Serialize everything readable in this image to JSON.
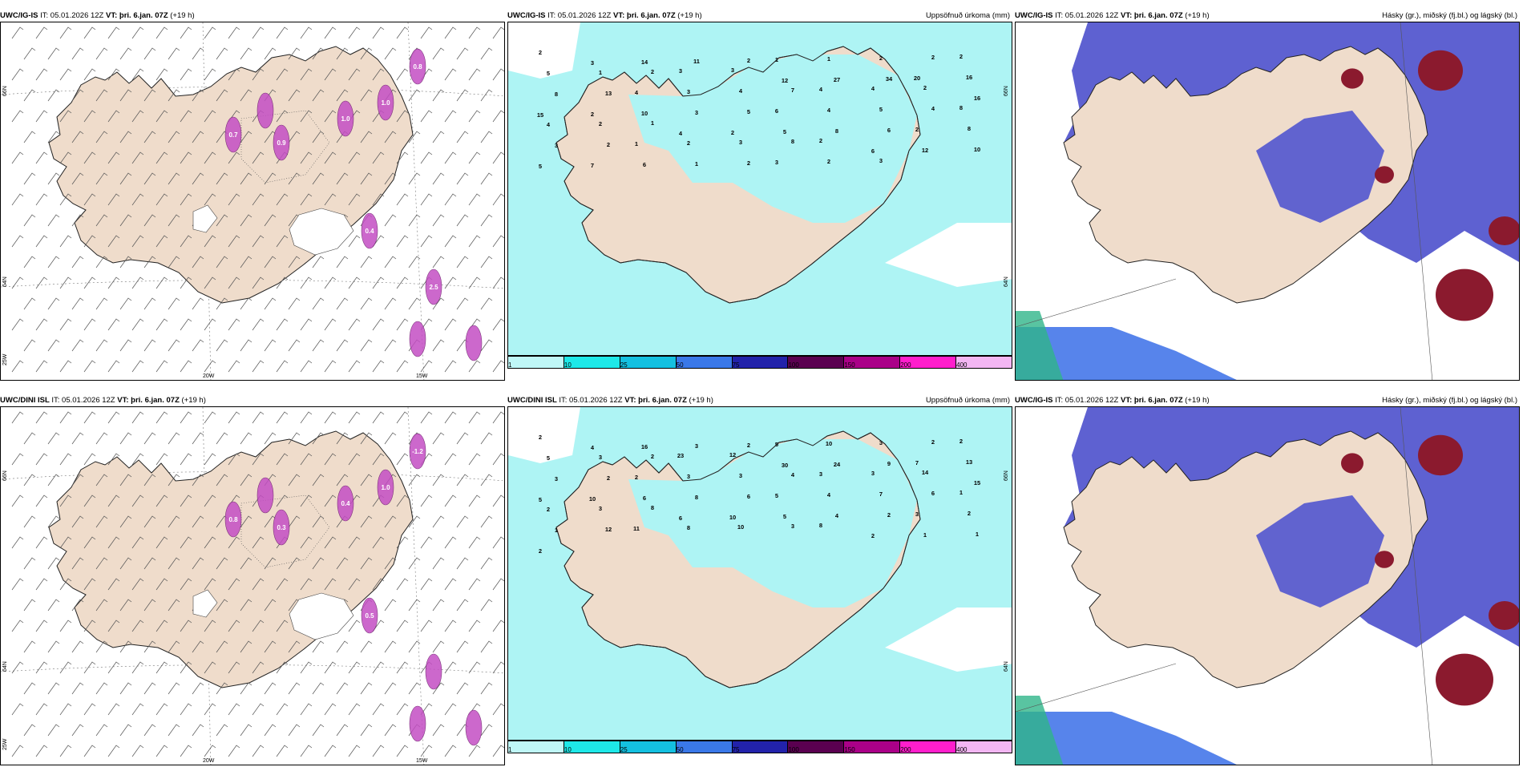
{
  "rows": [
    {
      "panels": [
        {
          "model": "UWC/IG-IS",
          "it": "IT: 05.01.2026 12Z",
          "vt_label": "VT:",
          "vt_value": "þri. 6.jan. 07Z",
          "lead": "(+19 h)",
          "field": "",
          "grid": {
            "lat66": "66N",
            "lat64": "64N",
            "lon20": "20W",
            "lon15": "15W",
            "lon25": "25W"
          },
          "wind_labels": [
            "1.0",
            "0.8",
            "1.0",
            "0.9",
            "0.7",
            "0.4",
            "2.5"
          ]
        },
        {
          "model": "UWC/IG-IS",
          "it": "IT: 05.01.2026 12Z",
          "vt_label": "VT:",
          "vt_value": "þri. 6.jan. 07Z",
          "lead": "(+19 h)",
          "field": "Uppsöfnuð úrkoma (mm)",
          "grid": {
            "lat66": "66N",
            "lat64": "64N"
          },
          "precip": [
            "2",
            "3",
            "14",
            "11",
            "2",
            "1",
            "1",
            "2",
            "2",
            "2",
            "5",
            "1",
            "2",
            "3",
            "3",
            "12",
            "27",
            "34",
            "20",
            "16",
            "8",
            "13",
            "4",
            "3",
            "4",
            "7",
            "4",
            "4",
            "2",
            "16",
            "15",
            "2",
            "10",
            "3",
            "5",
            "6",
            "4",
            "5",
            "4",
            "8",
            "4",
            "2",
            "1",
            "4",
            "2",
            "5",
            "8",
            "6",
            "2",
            "8",
            "3",
            "2",
            "1",
            "2",
            "3",
            "8",
            "2",
            "6",
            "12",
            "10",
            "5",
            "7",
            "6",
            "1",
            "2",
            "3",
            "2",
            "3"
          ]
        },
        {
          "model": "UWC/IG-IS",
          "it": "IT: 05.01.2026 12Z",
          "vt_label": "VT:",
          "vt_value": "þri. 6.jan. 07Z",
          "lead": "(+19 h)",
          "field": "Hásky (gr.), miðský (fj.bl.) og lágský (bl.)"
        }
      ]
    },
    {
      "panels": [
        {
          "model": "UWC/DINI ISL",
          "it": "IT: 05.01.2026 12Z",
          "vt_label": "VT:",
          "vt_value": "þri. 6.jan. 07Z",
          "lead": "(+19 h)",
          "field": "",
          "grid": {
            "lat66": "66N",
            "lat64": "64N",
            "lon20": "20W",
            "lon15": "15W",
            "lon25": "25W"
          },
          "wind_labels": [
            "1.0",
            "-1.2",
            "0.4",
            "0.3",
            "0.8",
            "0.5"
          ]
        },
        {
          "model": "UWC/DINI ISL",
          "it": "IT: 05.01.2026 12Z",
          "vt_label": "VT:",
          "vt_value": "þri. 6.jan. 07Z",
          "lead": "(+19 h)",
          "field": "Uppsöfnuð úrkoma (mm)",
          "grid": {
            "lat66": "66N",
            "lat64": "64N"
          },
          "precip": [
            "2",
            "4",
            "16",
            "3",
            "2",
            "5",
            "10",
            "3",
            "2",
            "2",
            "5",
            "3",
            "2",
            "23",
            "12",
            "30",
            "24",
            "9",
            "7",
            "13",
            "3",
            "2",
            "2",
            "3",
            "3",
            "4",
            "3",
            "3",
            "14",
            "15",
            "5",
            "10",
            "6",
            "8",
            "6",
            "5",
            "4",
            "7",
            "6",
            "1",
            "2",
            "3",
            "8",
            "6",
            "10",
            "5",
            "4",
            "2",
            "3",
            "2",
            "1",
            "12",
            "11",
            "8",
            "10",
            "3",
            "8",
            "2",
            "1",
            "1",
            "2"
          ]
        },
        {
          "model": "UWC/IG-IS",
          "it": "IT: 05.01.2026 12Z",
          "vt_label": "VT:",
          "vt_value": "þri. 6.jan. 07Z",
          "lead": "(+19 h)",
          "field": "Hásky (gr.), miðský (fj.bl.) og lágský (bl.)"
        }
      ]
    }
  ],
  "colorbar": {
    "ticks": [
      "1",
      "10",
      "25",
      "50",
      "75",
      "100",
      "150",
      "200",
      "400"
    ],
    "colors": [
      "#bff7f7",
      "#1ee8e8",
      "#14c0e0",
      "#3a78e8",
      "#2222aa",
      "#5a0050",
      "#aa0088",
      "#ff1ecc",
      "#f3b6f3"
    ]
  },
  "colors": {
    "land": "#efdccb",
    "precip_light": "#aef4f4",
    "cloud_high": "#5558cf",
    "cloud_mid": "#3a6fe8",
    "cloud_low_red": "#8b1a2e",
    "convective": "#c44ec4"
  }
}
